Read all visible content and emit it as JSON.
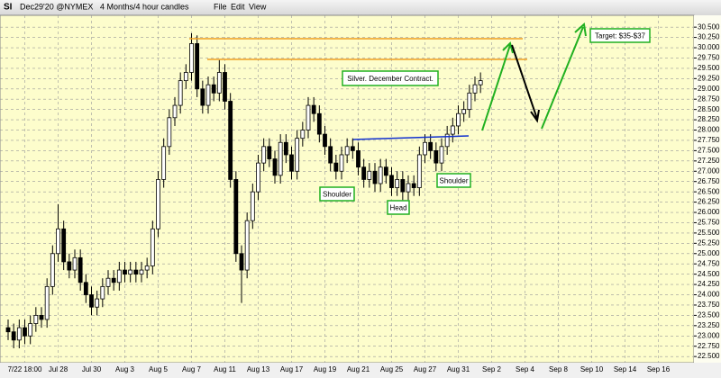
{
  "toolbar": {
    "symbol": "SI",
    "contract": "Dec29'20 @NYMEX",
    "period": "4 Months/4 hour candles",
    "menus": [
      "File",
      "Edit",
      "View"
    ]
  },
  "chart_data": {
    "type": "candlestick",
    "grid": true,
    "up_color": "#ffffff",
    "down_color": "#000000",
    "ylim": [
      22.35,
      30.7
    ],
    "yticks": [
      {
        "value": 22.5,
        "label": "22.500"
      },
      {
        "value": 22.75,
        "label": "22.750"
      },
      {
        "value": 23,
        "label": "23.000"
      },
      {
        "value": 23.25,
        "label": "23.250"
      },
      {
        "value": 23.5,
        "label": "23.500"
      },
      {
        "value": 23.75,
        "label": "23.750"
      },
      {
        "value": 24,
        "label": "24.000"
      },
      {
        "value": 24.25,
        "label": "24.250"
      },
      {
        "value": 24.5,
        "label": "24.500"
      },
      {
        "value": 24.75,
        "label": "24.750"
      },
      {
        "value": 25,
        "label": "25.000"
      },
      {
        "value": 25.25,
        "label": "25.250"
      },
      {
        "value": 25.5,
        "label": "25.500"
      },
      {
        "value": 25.75,
        "label": "25.750"
      },
      {
        "value": 26,
        "label": "26.000"
      },
      {
        "value": 26.25,
        "label": "26.250"
      },
      {
        "value": 26.5,
        "label": "26.500"
      },
      {
        "value": 26.75,
        "label": "26.750"
      },
      {
        "value": 27,
        "label": "27.000"
      },
      {
        "value": 27.25,
        "label": "27.250"
      },
      {
        "value": 27.5,
        "label": "27.500"
      },
      {
        "value": 27.75,
        "label": "27.750"
      },
      {
        "value": 28,
        "label": "28.000"
      },
      {
        "value": 28.25,
        "label": "28.250"
      },
      {
        "value": 28.5,
        "label": "28.500"
      },
      {
        "value": 28.75,
        "label": "28.750"
      },
      {
        "value": 29,
        "label": "29.000"
      },
      {
        "value": 29.25,
        "label": "29.250"
      },
      {
        "value": 29.5,
        "label": "29.500"
      },
      {
        "value": 29.75,
        "label": "29.750"
      },
      {
        "value": 30,
        "label": "30.000"
      },
      {
        "value": 30.25,
        "label": "30.250"
      },
      {
        "value": 30.5,
        "label": "30.500"
      }
    ],
    "categories": [
      null,
      null,
      null,
      "7/22 18:00",
      null,
      null,
      null,
      null,
      null,
      "Jul 28",
      null,
      null,
      null,
      null,
      null,
      "Jul 30",
      null,
      null,
      null,
      null,
      null,
      "Aug 3",
      null,
      null,
      null,
      null,
      null,
      "Aug 5",
      null,
      null,
      null,
      null,
      null,
      "Aug 7",
      null,
      null,
      null,
      null,
      null,
      "Aug 11",
      null,
      null,
      null,
      null,
      null,
      "Aug 13",
      null,
      null,
      null,
      null,
      null,
      "Aug 17",
      null,
      null,
      null,
      null,
      null,
      "Aug 19",
      null,
      null,
      null,
      null,
      null,
      "Aug 21",
      null,
      null,
      null,
      null,
      null,
      "Aug 25",
      null,
      null,
      null,
      null,
      null,
      "Aug 27",
      null,
      null,
      null,
      null,
      null,
      "Aug 31",
      null,
      null,
      null,
      null,
      null,
      "Sep 2",
      null,
      null,
      null,
      null,
      null,
      "Sep 4",
      null,
      null,
      null,
      null,
      null,
      "Sep 8",
      null,
      null,
      null,
      null,
      null,
      "Sep 10",
      null,
      null,
      null,
      null,
      null,
      "Sep 14",
      null,
      null,
      null,
      null,
      null,
      "Sep 16"
    ],
    "open": [
      23.2,
      23.1,
      22.9,
      23.2,
      23.0,
      23.3,
      23.5,
      23.4,
      24.2,
      25.0,
      25.6,
      24.8,
      24.6,
      24.9,
      24.3,
      24.0,
      23.7,
      23.9,
      24.2,
      24.4,
      24.3,
      24.6,
      24.5,
      24.6,
      24.5,
      24.6,
      24.7,
      25.6,
      26.8,
      27.6,
      28.3,
      28.6,
      29.2,
      29.4,
      30.1,
      29.0,
      28.6,
      29.1,
      28.9,
      29.4,
      28.7,
      26.8,
      25.0,
      24.6,
      25.8,
      26.5,
      27.2,
      27.6,
      27.3,
      26.9,
      27.7,
      27.4,
      27.0,
      27.8,
      28.0,
      28.6,
      28.4,
      27.9,
      27.6,
      27.2,
      27.0,
      27.4,
      27.6,
      27.5,
      27.1,
      26.8,
      27.0,
      26.7,
      27.1,
      26.9,
      26.6,
      26.8,
      26.5,
      26.7,
      26.6,
      27.4,
      27.7,
      27.5,
      27.2,
      27.6,
      27.9,
      28.1,
      28.4,
      28.5,
      28.9,
      29.1,
      null,
      null,
      null,
      null,
      null,
      null,
      null,
      null,
      null,
      null,
      null,
      null,
      null,
      null,
      null,
      null,
      null,
      null,
      null,
      null,
      null,
      null,
      null,
      null,
      null,
      null,
      null,
      null,
      null,
      null,
      null,
      null
    ],
    "high": [
      23.4,
      23.3,
      23.4,
      23.4,
      23.5,
      23.7,
      23.7,
      24.4,
      25.2,
      26.2,
      25.8,
      25.0,
      25.1,
      25.1,
      24.5,
      24.2,
      24.1,
      24.4,
      24.6,
      24.6,
      24.8,
      24.8,
      24.8,
      24.8,
      24.8,
      24.9,
      25.8,
      27.0,
      27.8,
      28.5,
      28.8,
      29.4,
      29.6,
      30.35,
      30.3,
      29.2,
      29.3,
      29.3,
      29.7,
      29.6,
      28.9,
      27.0,
      25.2,
      26.0,
      26.7,
      27.4,
      27.8,
      27.8,
      27.5,
      27.9,
      27.9,
      27.6,
      28.0,
      28.2,
      28.8,
      28.8,
      28.6,
      28.1,
      27.8,
      27.4,
      27.6,
      27.8,
      27.8,
      27.7,
      27.3,
      27.2,
      27.2,
      27.3,
      27.3,
      27.1,
      27.0,
      27.0,
      26.9,
      26.9,
      27.6,
      27.9,
      27.9,
      27.7,
      27.8,
      28.1,
      28.3,
      28.6,
      28.7,
      29.1,
      29.3,
      29.4,
      null,
      null,
      null,
      null,
      null,
      null,
      null,
      null,
      null,
      null,
      null,
      null,
      null,
      null,
      null,
      null,
      null,
      null,
      null,
      null,
      null,
      null,
      null,
      null,
      null,
      null,
      null,
      null,
      null,
      null,
      null,
      null
    ],
    "low": [
      22.9,
      22.7,
      22.7,
      22.8,
      22.8,
      23.1,
      23.2,
      23.2,
      24.0,
      24.8,
      24.6,
      24.4,
      24.4,
      24.1,
      23.8,
      23.5,
      23.5,
      23.7,
      24.0,
      24.1,
      24.1,
      24.3,
      24.3,
      24.3,
      24.3,
      24.4,
      24.5,
      25.4,
      26.6,
      27.4,
      28.1,
      28.4,
      29.0,
      29.2,
      28.8,
      28.4,
      28.4,
      28.7,
      28.7,
      28.5,
      26.6,
      24.8,
      23.8,
      24.4,
      25.6,
      26.3,
      27.0,
      27.1,
      26.7,
      26.7,
      27.2,
      26.8,
      26.8,
      27.6,
      27.8,
      28.2,
      27.7,
      27.4,
      27.0,
      26.8,
      26.8,
      27.2,
      27.3,
      26.9,
      26.6,
      26.6,
      26.5,
      26.5,
      26.7,
      26.4,
      26.4,
      26.3,
      26.3,
      26.4,
      26.4,
      27.2,
      27.3,
      27.0,
      27.0,
      27.4,
      27.7,
      27.9,
      28.2,
      28.3,
      28.7,
      28.9,
      null,
      null,
      null,
      null,
      null,
      null,
      null,
      null,
      null,
      null,
      null,
      null,
      null,
      null,
      null,
      null,
      null,
      null,
      null,
      null,
      null,
      null,
      null,
      null,
      null,
      null,
      null,
      null,
      null,
      null,
      null,
      null
    ],
    "close": [
      23.1,
      22.9,
      23.2,
      23.0,
      23.3,
      23.5,
      23.4,
      24.2,
      25.0,
      25.6,
      24.8,
      24.6,
      24.9,
      24.3,
      24.0,
      23.7,
      23.9,
      24.2,
      24.4,
      24.3,
      24.6,
      24.5,
      24.6,
      24.5,
      24.6,
      24.7,
      25.6,
      26.8,
      27.6,
      28.3,
      28.6,
      29.2,
      29.4,
      30.1,
      29.0,
      28.6,
      29.1,
      28.9,
      29.4,
      28.7,
      26.8,
      25.0,
      24.6,
      25.8,
      26.5,
      27.2,
      27.6,
      27.3,
      26.9,
      27.7,
      27.4,
      27.0,
      27.8,
      28.0,
      28.6,
      28.4,
      27.9,
      27.6,
      27.2,
      27.0,
      27.4,
      27.6,
      27.5,
      27.1,
      26.8,
      27.0,
      26.7,
      27.1,
      26.9,
      26.6,
      26.8,
      26.5,
      26.7,
      26.6,
      27.4,
      27.7,
      27.5,
      27.2,
      27.6,
      27.9,
      28.1,
      28.4,
      28.5,
      28.9,
      29.1,
      29.2,
      null,
      null,
      null,
      null,
      null,
      null,
      null,
      null,
      null,
      null,
      null,
      null,
      null,
      null,
      null,
      null,
      null,
      null,
      null,
      null,
      null,
      null,
      null,
      null,
      null,
      null,
      null,
      null,
      null,
      null,
      null,
      null
    ],
    "annotations": [
      "Silver. December Contract.",
      "Shoulder",
      "Head",
      "Shoulder",
      "Target: $35-$37"
    ]
  }
}
